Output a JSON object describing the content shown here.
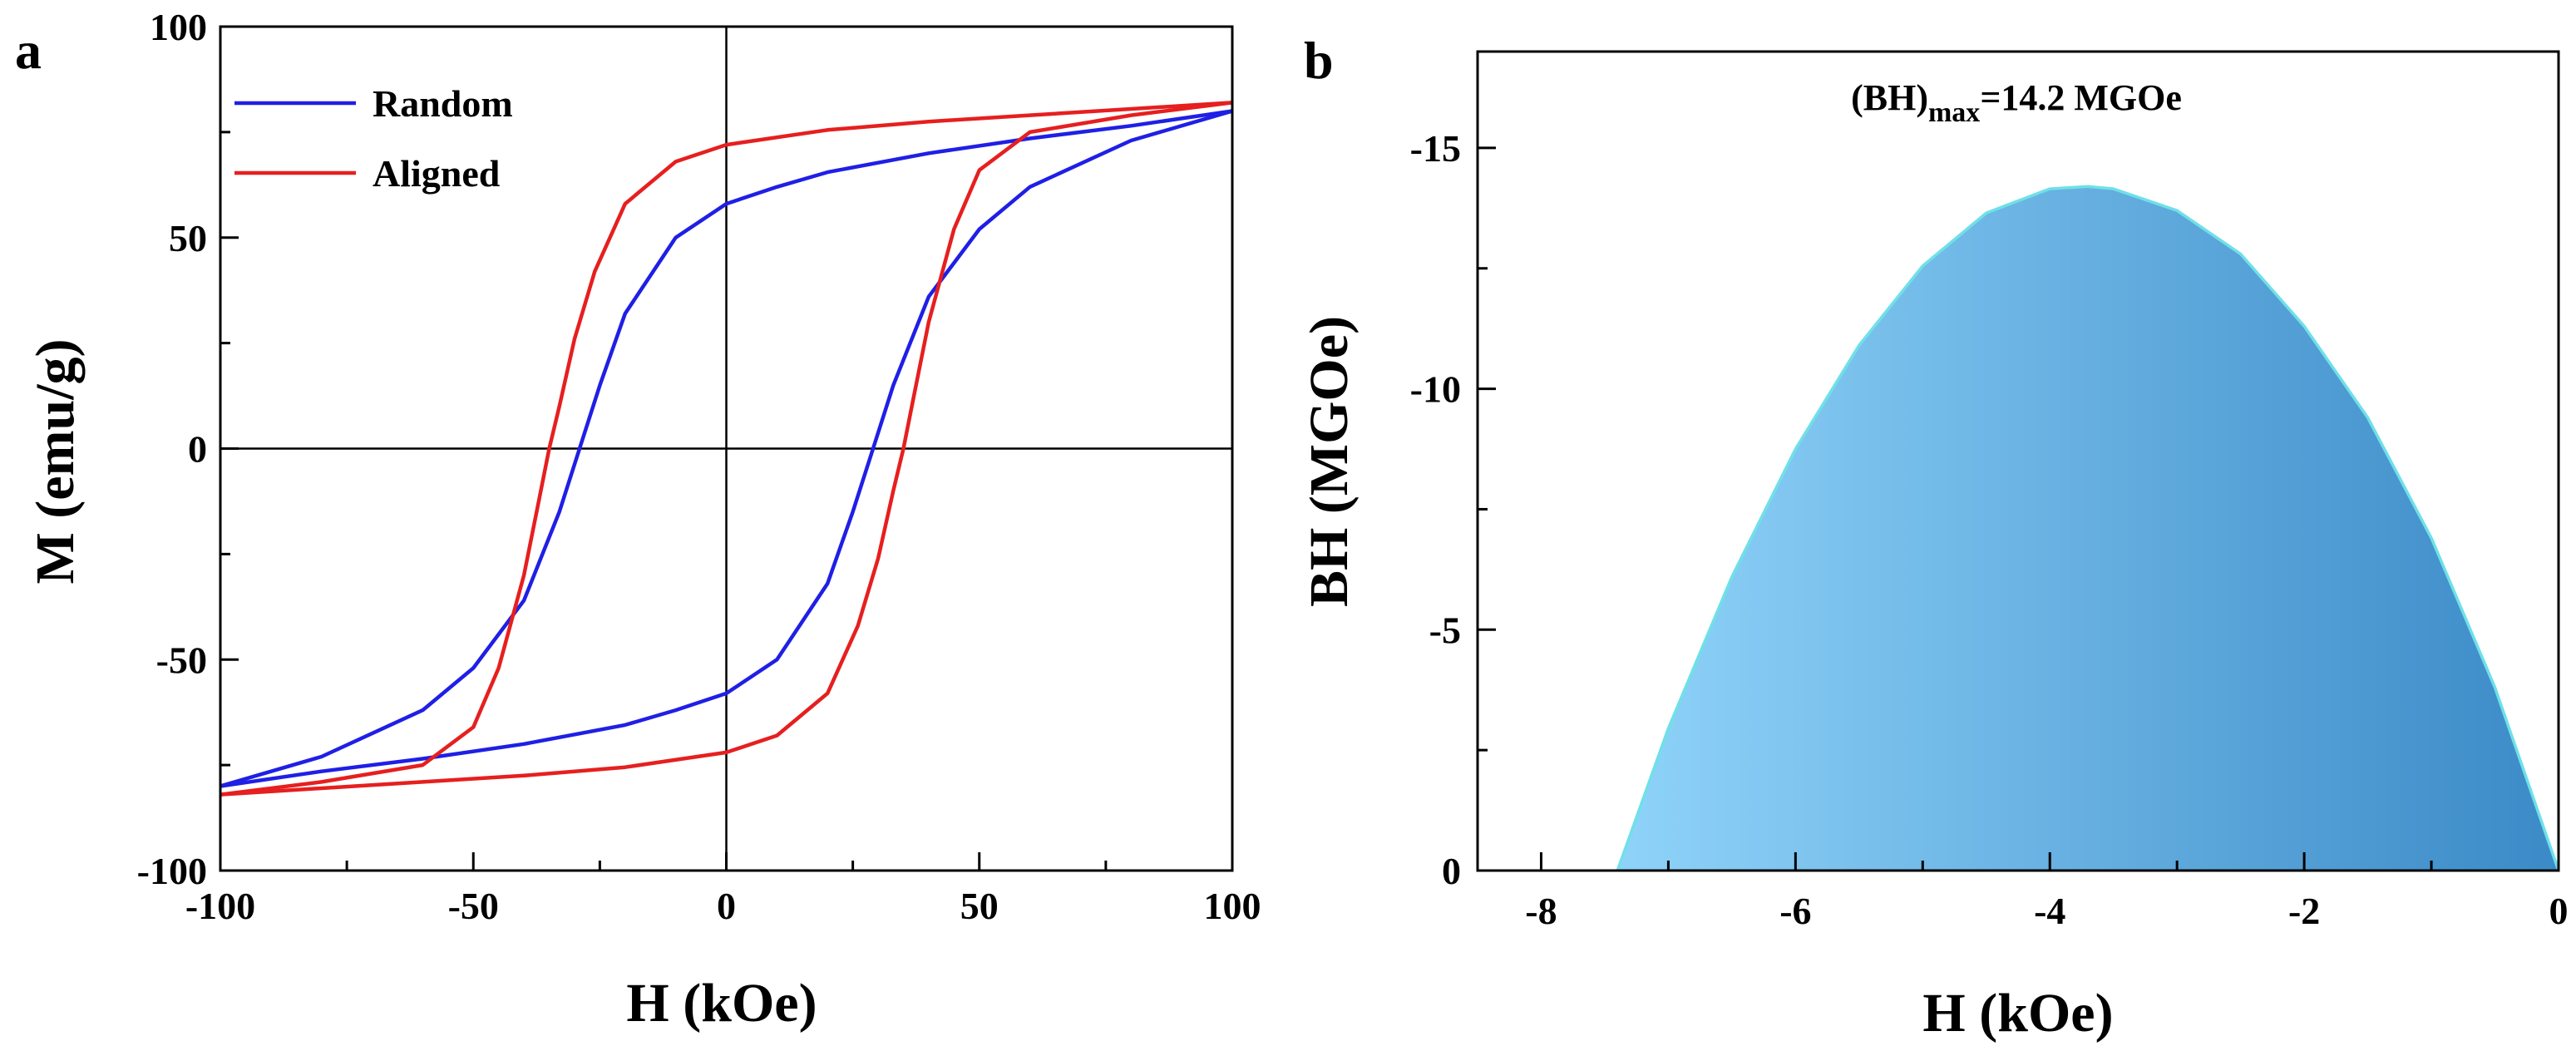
{
  "chart_data": [
    {
      "panel": "a",
      "type": "line",
      "xlabel": "H (kOe)",
      "ylabel": "M (emu/g)",
      "xlim": [
        -100,
        100
      ],
      "ylim": [
        -100,
        100
      ],
      "xticks": [
        -100,
        -50,
        0,
        50,
        100
      ],
      "yticks": [
        -100,
        -50,
        0,
        50,
        100
      ],
      "legend_position": "top-left",
      "series": [
        {
          "name": "Random",
          "color": "#1f1fe6",
          "loop": {
            "upper_branch": {
              "H": [
                100,
                80,
                60,
                40,
                20,
                10,
                0,
                -10,
                -20,
                -25,
                -29,
                -33,
                -40,
                -50,
                -60,
                -80,
                -100
              ],
              "M": [
                80,
                76.5,
                73.5,
                70,
                65.5,
                62,
                58,
                50,
                32,
                15,
                0,
                -15,
                -36,
                -52,
                -62,
                -73,
                -80
              ]
            },
            "lower_branch": {
              "H": [
                -100,
                -80,
                -60,
                -40,
                -20,
                -10,
                0,
                10,
                20,
                25,
                29,
                33,
                40,
                50,
                60,
                80,
                100
              ],
              "M": [
                -80,
                -76.5,
                -73.5,
                -70,
                -65.5,
                -62,
                -58,
                -50,
                -32,
                -15,
                0,
                15,
                36,
                52,
                62,
                73,
                80
              ]
            }
          }
        },
        {
          "name": "Aligned",
          "color": "#e61f1f",
          "loop": {
            "upper_branch": {
              "H": [
                100,
                80,
                60,
                40,
                20,
                0,
                -10,
                -20,
                -26,
                -30,
                -33,
                -35,
                -37,
                -40,
                -45,
                -50,
                -60,
                -80,
                -100
              ],
              "M": [
                82,
                80.5,
                79,
                77.5,
                75.5,
                72,
                68,
                58,
                42,
                26,
                10,
                0,
                -12,
                -30,
                -52,
                -66,
                -75,
                -79,
                -82
              ]
            },
            "lower_branch": {
              "H": [
                -100,
                -80,
                -60,
                -40,
                -20,
                0,
                10,
                20,
                26,
                30,
                33,
                35,
                37,
                40,
                45,
                50,
                60,
                80,
                100
              ],
              "M": [
                -82,
                -80.5,
                -79,
                -77.5,
                -75.5,
                -72,
                -68,
                -58,
                -42,
                -26,
                -10,
                0,
                12,
                30,
                52,
                66,
                75,
                79,
                82
              ]
            }
          }
        }
      ]
    },
    {
      "panel": "b",
      "type": "area",
      "xlabel": "H (kOe)",
      "ylabel": "BH (MGOe)",
      "xlim": [
        -8.5,
        0
      ],
      "ylim": [
        0,
        -17
      ],
      "xticks": [
        -8,
        -6,
        -4,
        -2,
        0
      ],
      "xtick_labels": [
        "-8",
        "-6",
        "-4",
        "-2",
        "0"
      ],
      "yticks": [
        0,
        -5,
        -10,
        -15
      ],
      "ytick_labels": [
        "0",
        "-5",
        "-10",
        "-15"
      ],
      "annotation": {
        "text_prefix": "(BH)",
        "text_subscript": "max",
        "text_suffix": "=14.2 MGOe"
      },
      "x": [
        -7.4,
        -7.0,
        -6.5,
        -6.0,
        -5.5,
        -5.0,
        -4.5,
        -4.0,
        -3.7,
        -3.5,
        -3.0,
        -2.5,
        -2.0,
        -1.5,
        -1.0,
        -0.5,
        0
      ],
      "y": [
        0,
        -2.95,
        -6.1,
        -8.75,
        -10.9,
        -12.55,
        -13.65,
        -14.15,
        -14.2,
        -14.15,
        -13.7,
        -12.8,
        -11.3,
        -9.4,
        -6.9,
        -3.8,
        0
      ],
      "baseline_segment": {
        "x": [
          -8.5,
          -7.4
        ],
        "y": [
          0,
          0
        ]
      },
      "fill_colors": {
        "left": "#8fd3f9",
        "right": "#3b8ac7"
      },
      "edge_color": "#6fe0e8"
    }
  ]
}
